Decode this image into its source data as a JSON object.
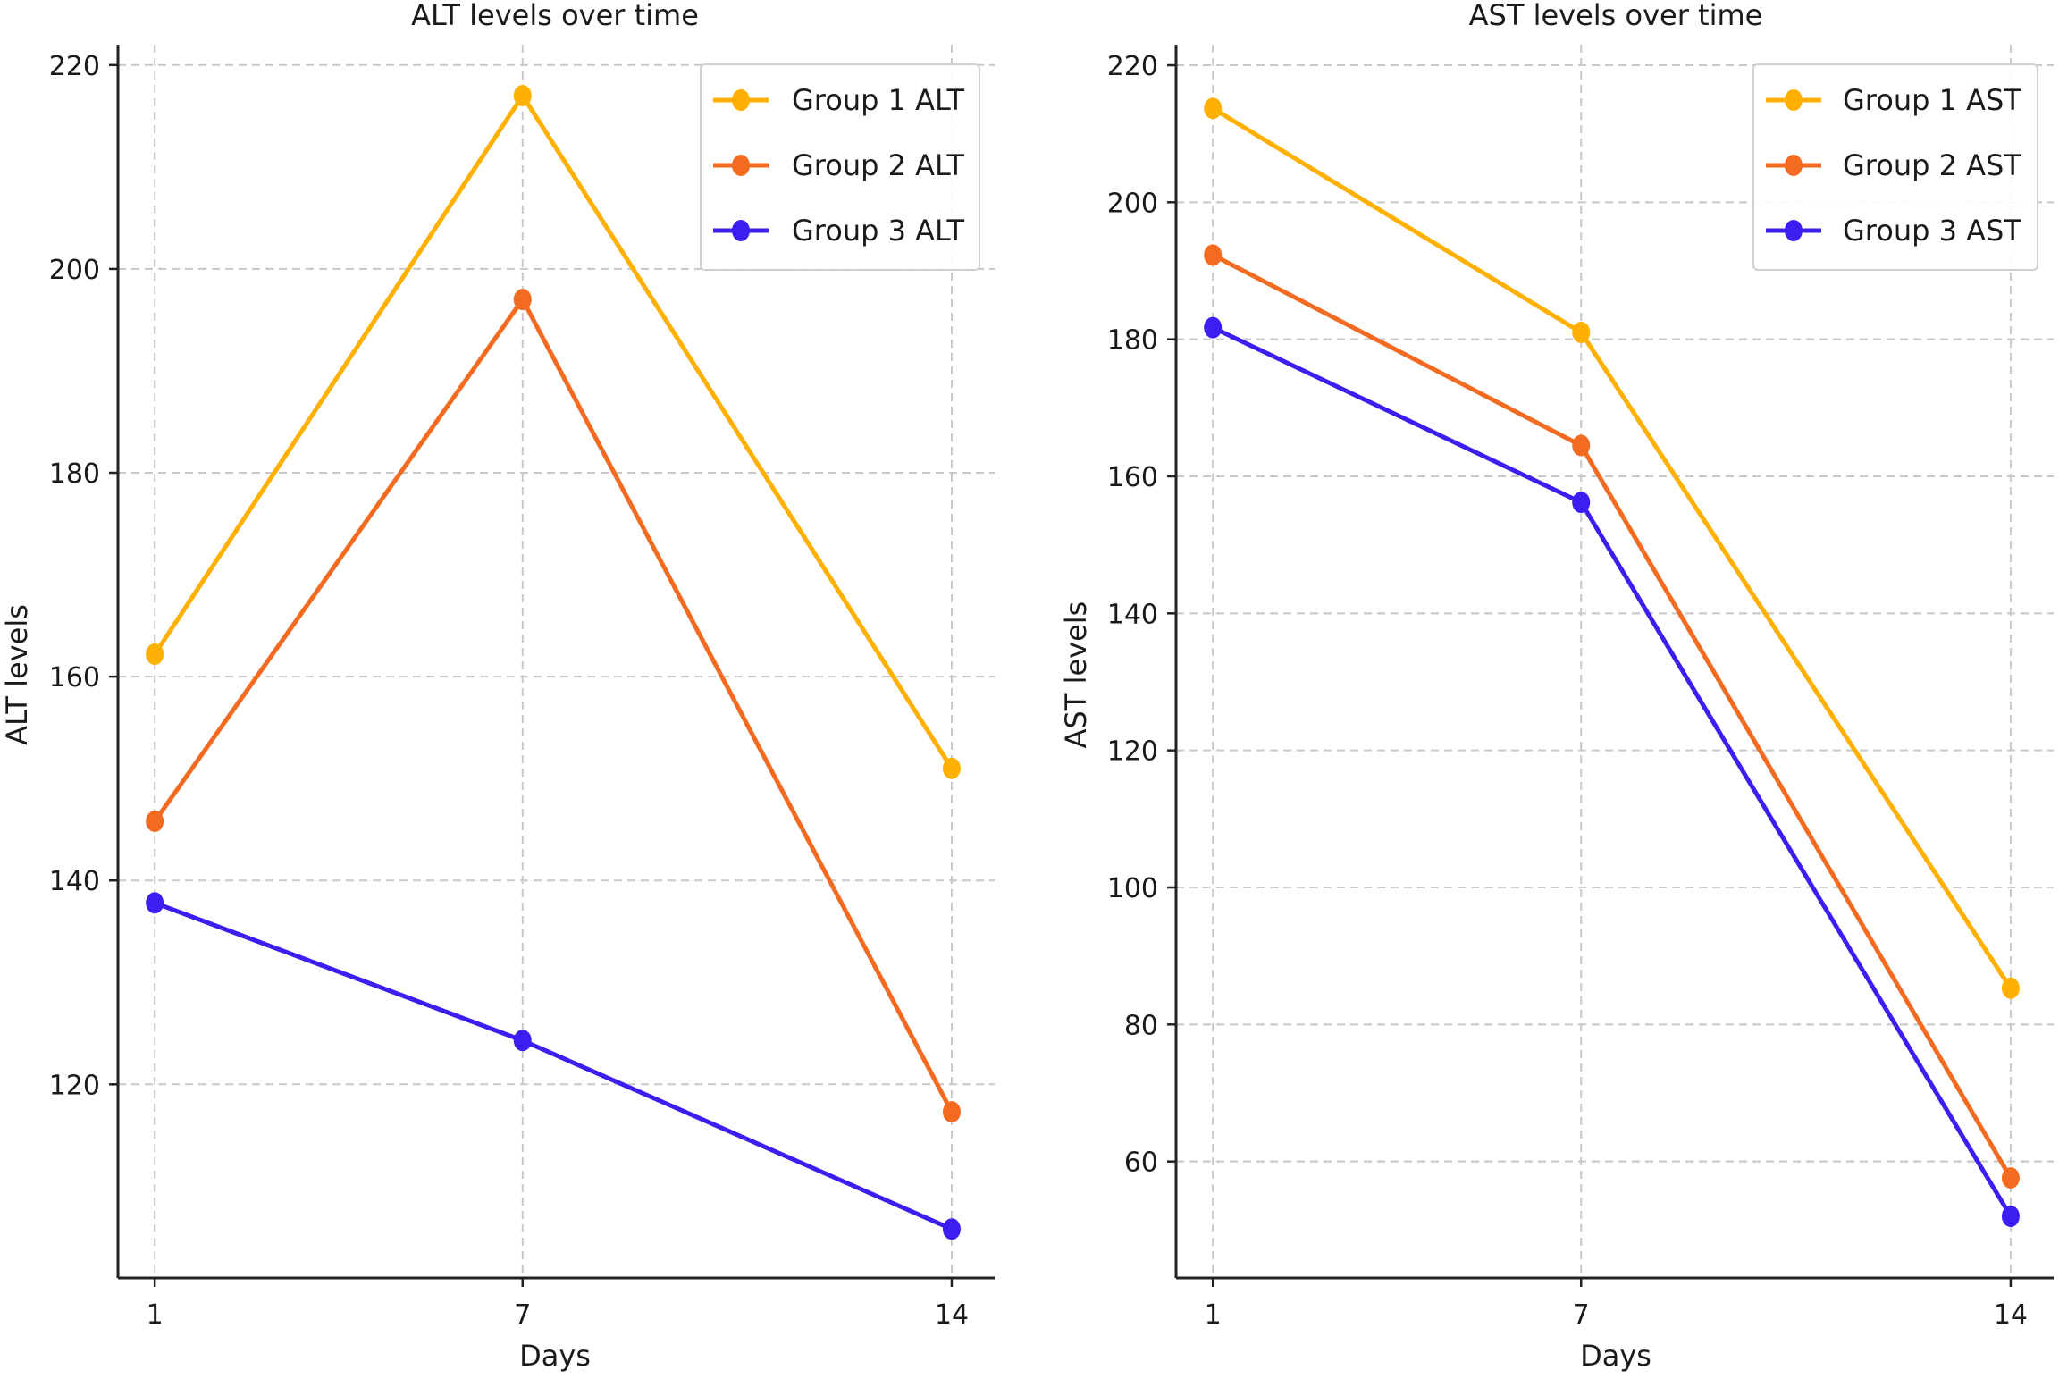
{
  "colors": {
    "group1": "#FFB000",
    "group2": "#F26B21",
    "group3": "#3A1FF0"
  },
  "chart_data": [
    {
      "type": "line",
      "title": "ALT levels over time",
      "xlabel": "Days",
      "ylabel": "ALT levels",
      "x": [
        1,
        7,
        14
      ],
      "xticks": [
        1,
        7,
        14
      ],
      "xlim": [
        0.4,
        14.7
      ],
      "yticks": [
        120,
        140,
        160,
        180,
        200,
        220
      ],
      "ylim": [
        101,
        222
      ],
      "grid": true,
      "legend_position": "top-right",
      "series": [
        {
          "name": "Group 1 ALT",
          "color": "#FFB000",
          "values": [
            162.2,
            217.0,
            151.0
          ]
        },
        {
          "name": "Group 2 ALT",
          "color": "#F26B21",
          "values": [
            145.8,
            197.0,
            117.3
          ]
        },
        {
          "name": "Group 3 ALT",
          "color": "#3A1FF0",
          "values": [
            137.8,
            124.3,
            105.8
          ]
        }
      ]
    },
    {
      "type": "line",
      "title": "AST levels over time",
      "xlabel": "Days",
      "ylabel": "AST levels",
      "x": [
        1,
        7,
        14
      ],
      "xticks": [
        1,
        7,
        14
      ],
      "xlim": [
        0.4,
        14.7
      ],
      "yticks": [
        60,
        80,
        100,
        120,
        140,
        160,
        180,
        200,
        220
      ],
      "ylim": [
        43,
        223
      ],
      "grid": true,
      "legend_position": "top-right",
      "series": [
        {
          "name": "Group 1 AST",
          "color": "#FFB000",
          "values": [
            213.7,
            181.0,
            85.3
          ]
        },
        {
          "name": "Group 2 AST",
          "color": "#F26B21",
          "values": [
            192.3,
            164.5,
            57.6
          ]
        },
        {
          "name": "Group 3 AST",
          "color": "#3A1FF0",
          "values": [
            181.7,
            156.2,
            52.0
          ]
        }
      ]
    }
  ]
}
